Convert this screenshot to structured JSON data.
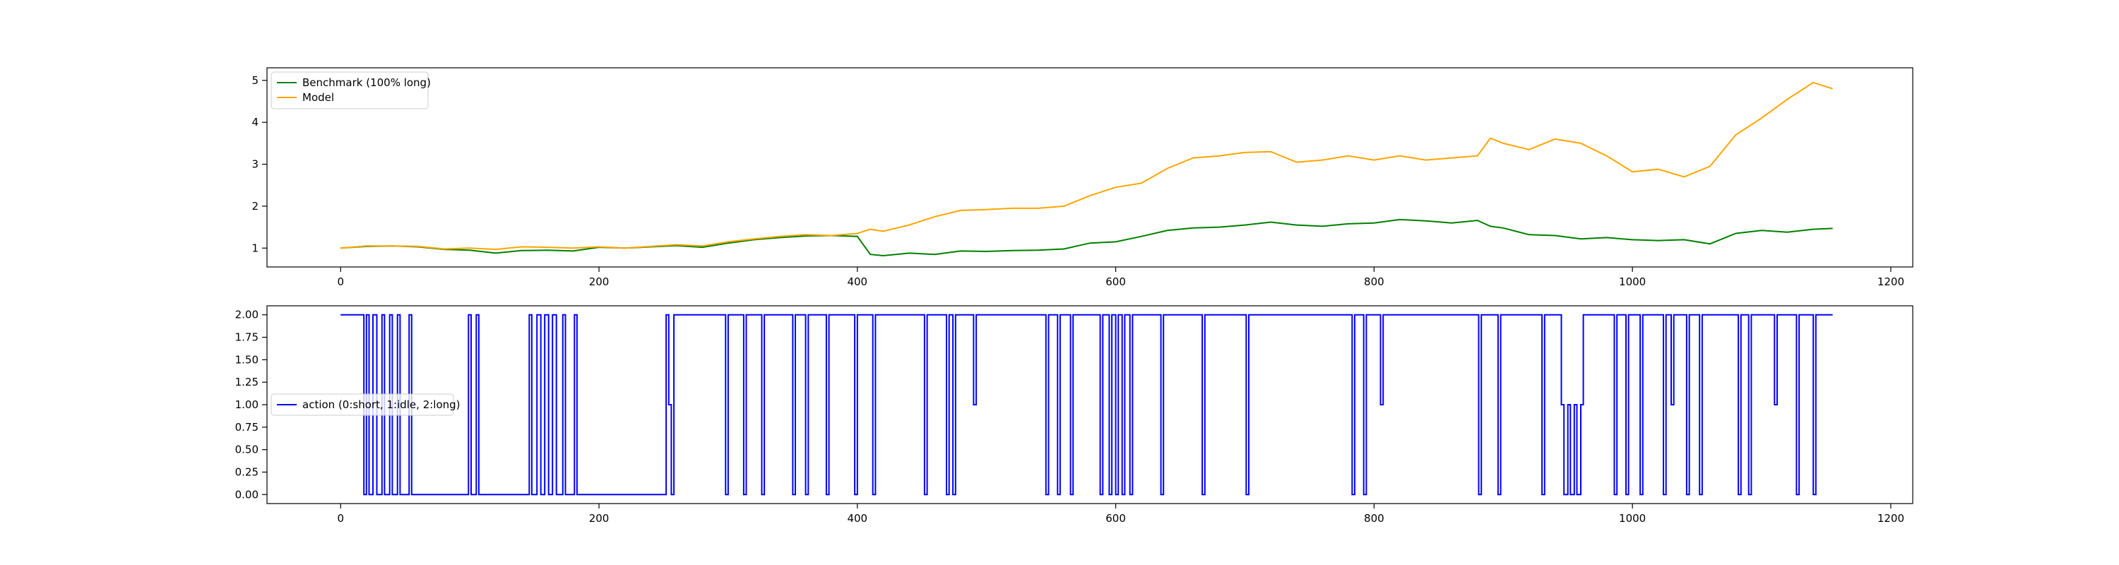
{
  "chart_data": [
    {
      "type": "line",
      "xlim": [
        -57,
        1217
      ],
      "ylim": [
        0.55,
        5.3
      ],
      "xticks": [
        0,
        200,
        400,
        600,
        800,
        1000,
        1200
      ],
      "yticks": [
        1,
        2,
        3,
        4,
        5
      ],
      "grid": false,
      "legend_position": "upper-left",
      "series": [
        {
          "name": "Benchmark (100% long)",
          "color": "#008000",
          "x": [
            0,
            20,
            40,
            60,
            80,
            100,
            120,
            140,
            160,
            180,
            200,
            220,
            240,
            260,
            280,
            300,
            320,
            340,
            360,
            380,
            400,
            410,
            420,
            440,
            460,
            480,
            500,
            520,
            540,
            560,
            580,
            600,
            620,
            640,
            660,
            680,
            700,
            720,
            740,
            760,
            780,
            800,
            820,
            840,
            860,
            880,
            890,
            900,
            920,
            940,
            960,
            980,
            1000,
            1020,
            1040,
            1060,
            1080,
            1100,
            1120,
            1140,
            1155
          ],
          "y": [
            1.0,
            1.04,
            1.05,
            1.03,
            0.97,
            0.95,
            0.88,
            0.94,
            0.95,
            0.93,
            1.02,
            1.0,
            1.03,
            1.06,
            1.02,
            1.12,
            1.2,
            1.25,
            1.29,
            1.3,
            1.28,
            0.85,
            0.82,
            0.88,
            0.85,
            0.93,
            0.92,
            0.94,
            0.95,
            0.98,
            1.12,
            1.15,
            1.28,
            1.42,
            1.48,
            1.5,
            1.55,
            1.62,
            1.55,
            1.52,
            1.58,
            1.6,
            1.68,
            1.65,
            1.6,
            1.66,
            1.52,
            1.48,
            1.32,
            1.3,
            1.22,
            1.25,
            1.2,
            1.18,
            1.2,
            1.1,
            1.35,
            1.42,
            1.38,
            1.45,
            1.47
          ]
        },
        {
          "name": "Model",
          "color": "#ffa500",
          "x": [
            0,
            20,
            40,
            60,
            80,
            100,
            120,
            140,
            160,
            180,
            200,
            220,
            240,
            260,
            280,
            300,
            320,
            340,
            360,
            380,
            400,
            410,
            420,
            440,
            460,
            480,
            500,
            520,
            540,
            560,
            580,
            600,
            620,
            640,
            660,
            680,
            700,
            720,
            740,
            760,
            780,
            800,
            820,
            840,
            860,
            880,
            890,
            900,
            920,
            940,
            960,
            980,
            1000,
            1020,
            1040,
            1060,
            1080,
            1100,
            1120,
            1140,
            1155
          ],
          "y": [
            1.0,
            1.05,
            1.05,
            1.04,
            0.98,
            1.0,
            0.97,
            1.03,
            1.02,
            1.0,
            1.03,
            1.0,
            1.04,
            1.08,
            1.05,
            1.15,
            1.22,
            1.28,
            1.32,
            1.3,
            1.35,
            1.45,
            1.4,
            1.55,
            1.75,
            1.9,
            1.92,
            1.95,
            1.95,
            2.0,
            2.25,
            2.45,
            2.55,
            2.9,
            3.15,
            3.2,
            3.28,
            3.3,
            3.05,
            3.1,
            3.2,
            3.1,
            3.2,
            3.1,
            3.15,
            3.2,
            3.62,
            3.5,
            3.35,
            3.6,
            3.5,
            3.2,
            2.82,
            2.88,
            2.7,
            2.95,
            3.7,
            4.1,
            4.55,
            4.95,
            4.8
          ]
        }
      ]
    },
    {
      "type": "line",
      "xlim": [
        -57,
        1217
      ],
      "ylim": [
        -0.1,
        2.1
      ],
      "xticks": [
        0,
        200,
        400,
        600,
        800,
        1000,
        1200
      ],
      "yticks": [
        "0.00",
        "0.25",
        "0.50",
        "0.75",
        "1.00",
        "1.25",
        "1.50",
        "1.75",
        "2.00"
      ],
      "grid": false,
      "legend_position": "center-left",
      "series": [
        {
          "name": "action (0:short, 1:idle, 2:long)",
          "color": "#0000ff",
          "step": true,
          "x": [
            0,
            18,
            20,
            22,
            25,
            28,
            32,
            34,
            38,
            40,
            44,
            46,
            53,
            55,
            99,
            101,
            105,
            107,
            146,
            148,
            152,
            155,
            158,
            161,
            164,
            167,
            172,
            174,
            181,
            183,
            252,
            254,
            256,
            258,
            298,
            300,
            312,
            314,
            326,
            328,
            350,
            352,
            360,
            362,
            376,
            378,
            398,
            400,
            412,
            414,
            452,
            454,
            469,
            471,
            474,
            476,
            490,
            492,
            546,
            548,
            555,
            557,
            565,
            567,
            588,
            590,
            595,
            597,
            600,
            602,
            605,
            607,
            611,
            613,
            635,
            637,
            667,
            669,
            701,
            703,
            783,
            785,
            792,
            794,
            805,
            807,
            881,
            883,
            896,
            898,
            930,
            932,
            945,
            947,
            950,
            952,
            955,
            957,
            960,
            962,
            986,
            988,
            995,
            997,
            1006,
            1008,
            1024,
            1026,
            1030,
            1032,
            1042,
            1044,
            1052,
            1054,
            1082,
            1084,
            1090,
            1092,
            1110,
            1112,
            1127,
            1129,
            1140,
            1142,
            1155
          ],
          "y": [
            2,
            0,
            2,
            0,
            2,
            0,
            2,
            0,
            2,
            0,
            2,
            0,
            2,
            0,
            2,
            0,
            2,
            0,
            2,
            0,
            2,
            0,
            2,
            0,
            2,
            0,
            2,
            0,
            2,
            0,
            2,
            1,
            0,
            2,
            0,
            2,
            0,
            2,
            0,
            2,
            0,
            2,
            0,
            2,
            0,
            2,
            0,
            2,
            0,
            2,
            0,
            2,
            0,
            2,
            0,
            2,
            1,
            2,
            0,
            2,
            0,
            2,
            0,
            2,
            0,
            2,
            0,
            2,
            0,
            2,
            0,
            2,
            0,
            2,
            0,
            2,
            0,
            2,
            0,
            2,
            0,
            2,
            0,
            2,
            1,
            2,
            0,
            2,
            0,
            2,
            0,
            2,
            1,
            0,
            1,
            0,
            1,
            0,
            1,
            2,
            0,
            2,
            0,
            2,
            0,
            2,
            0,
            2,
            1,
            2,
            0,
            2,
            0,
            2,
            0,
            2,
            0,
            2,
            1,
            2,
            0,
            2,
            0,
            2,
            2
          ]
        }
      ]
    }
  ]
}
